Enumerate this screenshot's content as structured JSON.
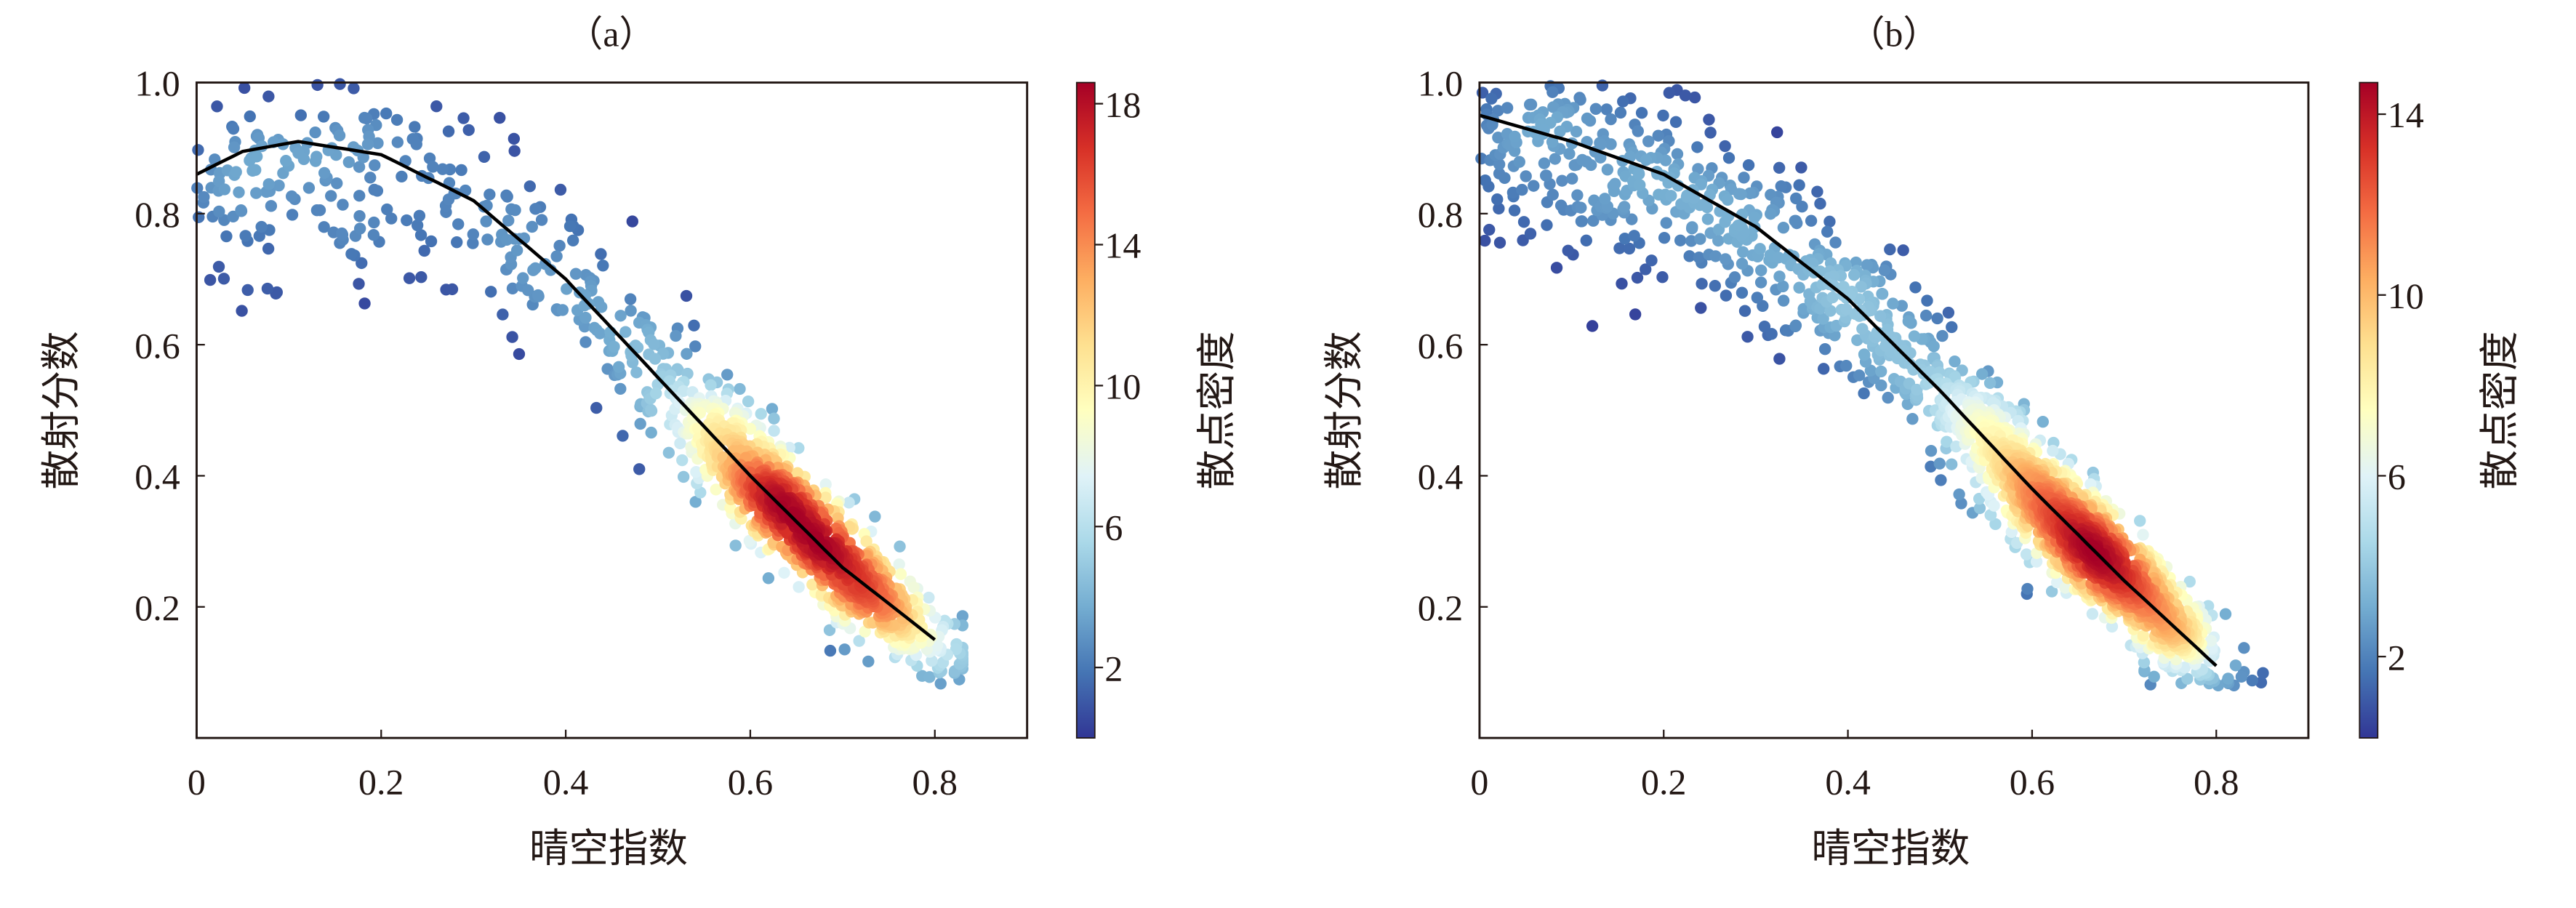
{
  "chart_data": [
    {
      "panel_label": "（a）",
      "type": "scatter",
      "xlabel": "晴空指数",
      "ylabel": "散射分数",
      "xlim": [
        0,
        0.9
      ],
      "ylim": [
        0,
        1.0
      ],
      "xticks": [
        0,
        0.2,
        0.4,
        0.6,
        0.8
      ],
      "xtick_labels": [
        "0",
        "0.2",
        "0.4",
        "0.6",
        "0.8"
      ],
      "yticks": [
        0.2,
        0.4,
        0.6,
        0.8,
        1.0
      ],
      "ytick_labels": [
        "0.2",
        "0.4",
        "0.6",
        "0.8",
        "1.0"
      ],
      "grid": false,
      "colormap": "RdYlBu_r",
      "colorbar": {
        "label": "散点密度",
        "range": [
          0,
          18.6
        ],
        "ticks": [
          2,
          6,
          10,
          14,
          18
        ],
        "tick_labels": [
          "2",
          "6",
          "10",
          "14",
          "18"
        ]
      },
      "density_peak": {
        "x": 0.67,
        "y": 0.28
      },
      "fit_curve": {
        "color": "#000000",
        "x": [
          0,
          0.05,
          0.11,
          0.2,
          0.3,
          0.4,
          0.5,
          0.6,
          0.7,
          0.8
        ],
        "y": [
          0.86,
          0.895,
          0.91,
          0.89,
          0.82,
          0.7,
          0.55,
          0.4,
          0.26,
          0.15
        ]
      }
    },
    {
      "panel_label": "（b）",
      "type": "scatter",
      "xlabel": "晴空指数",
      "ylabel": "散射分数",
      "xlim": [
        0,
        0.9
      ],
      "ylim": [
        0,
        1.0
      ],
      "xticks": [
        0,
        0.2,
        0.4,
        0.6,
        0.8
      ],
      "xtick_labels": [
        "0",
        "0.2",
        "0.4",
        "0.6",
        "0.8"
      ],
      "yticks": [
        0.2,
        0.4,
        0.6,
        0.8,
        1.0
      ],
      "ytick_labels": [
        "0.2",
        "0.4",
        "0.6",
        "0.8",
        "1.0"
      ],
      "grid": false,
      "colormap": "RdYlBu_r",
      "colorbar": {
        "label": "散点密度",
        "range": [
          0.2,
          14.7
        ],
        "ticks": [
          2,
          6,
          10,
          14
        ],
        "tick_labels": [
          "2",
          "6",
          "10",
          "14"
        ]
      },
      "density_peak": {
        "x": 0.69,
        "y": 0.26
      },
      "fit_curve": {
        "color": "#000000",
        "x": [
          0,
          0.1,
          0.2,
          0.3,
          0.4,
          0.5,
          0.6,
          0.7,
          0.8
        ],
        "y": [
          0.95,
          0.91,
          0.86,
          0.78,
          0.67,
          0.53,
          0.38,
          0.24,
          0.11
        ]
      }
    }
  ]
}
